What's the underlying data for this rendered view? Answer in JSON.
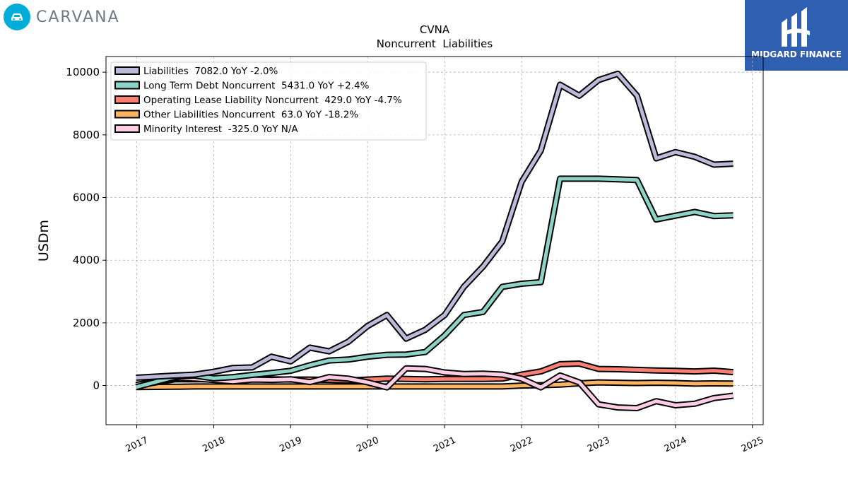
{
  "brand": {
    "name": "CARVANA",
    "accent": "#00aed9"
  },
  "badge": {
    "text": "MIDGARD FINANCE",
    "color": "#2f5fb0"
  },
  "chart_data": {
    "type": "line",
    "title": "CVNA",
    "subtitle": "Noncurrent  Liabilities",
    "ylabel": "USDm",
    "xlabel": "",
    "xlim": [
      2016.6,
      2025.14
    ],
    "ylim": [
      -1250,
      10500
    ],
    "xticks": [
      2017,
      2018,
      2019,
      2020,
      2021,
      2022,
      2023,
      2024,
      2025
    ],
    "yticks": [
      0,
      2000,
      4000,
      6000,
      8000,
      10000
    ],
    "grid": true,
    "legend_position": "top-left",
    "x": [
      2016.99,
      2017.5,
      2017.75,
      2018.0,
      2018.25,
      2018.5,
      2018.75,
      2019.0,
      2019.25,
      2019.5,
      2019.75,
      2020.0,
      2020.25,
      2020.5,
      2020.75,
      2021.0,
      2021.25,
      2021.5,
      2021.75,
      2022.0,
      2022.25,
      2022.5,
      2022.75,
      2023.0,
      2023.25,
      2023.5,
      2023.75,
      2024.0,
      2024.25,
      2024.5,
      2024.75
    ],
    "series": [
      {
        "name": "Liabilities  7082.0 YoY -2.0%",
        "color": "#bcbad9",
        "values": [
          250,
          320,
          350,
          440,
          560,
          580,
          920,
          770,
          1210,
          1090,
          1400,
          1900,
          2250,
          1500,
          1780,
          2250,
          3150,
          3800,
          4600,
          6500,
          7500,
          9600,
          9250,
          9750,
          9950,
          9250,
          7250,
          7450,
          7300,
          7050,
          7082
        ]
      },
      {
        "name": "Long Term Debt Noncurrent  5431.0 YoY +2.4%",
        "color": "#8dd3c7",
        "values": [
          -50,
          280,
          320,
          230,
          270,
          340,
          400,
          470,
          650,
          800,
          830,
          920,
          980,
          990,
          1070,
          1600,
          2250,
          2350,
          3150,
          3250,
          3300,
          6600,
          6600,
          6600,
          6580,
          6560,
          5300,
          5420,
          5540,
          5410,
          5431
        ]
      },
      {
        "name": "Operating Lease Liability Noncurrent  429.0 YoY -4.7%",
        "color": "#fb8072",
        "values": [
          0,
          200,
          200,
          200,
          200,
          200,
          200,
          190,
          190,
          180,
          160,
          190,
          220,
          210,
          200,
          210,
          210,
          210,
          220,
          350,
          450,
          680,
          700,
          530,
          520,
          500,
          480,
          470,
          450,
          475,
          429
        ]
      },
      {
        "name": "Other Liabilities Noncurrent  63.0 YoY -18.2%",
        "color": "#fdb462",
        "values": [
          -50,
          -40,
          -30,
          -30,
          -30,
          -30,
          -30,
          -30,
          -30,
          -30,
          -30,
          -30,
          -30,
          -30,
          -30,
          -30,
          -30,
          -30,
          -30,
          0,
          10,
          30,
          70,
          100,
          90,
          80,
          90,
          80,
          60,
          70,
          63
        ]
      },
      {
        "name": "Minority Interest  -325.0 YoY N/A",
        "color": "#fccde5",
        "values": [
          20,
          240,
          220,
          180,
          130,
          190,
          180,
          200,
          110,
          270,
          220,
          100,
          -60,
          550,
          530,
          420,
          370,
          380,
          350,
          220,
          -60,
          320,
          100,
          -600,
          -700,
          -720,
          -500,
          -630,
          -580,
          -400,
          -325
        ]
      }
    ]
  }
}
